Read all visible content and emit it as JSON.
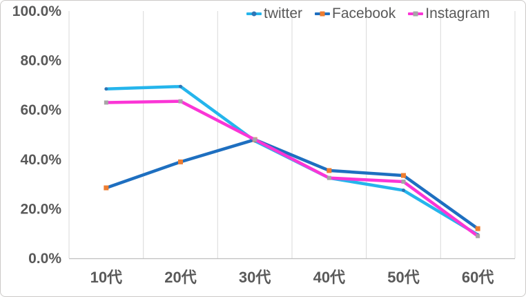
{
  "chart_data": {
    "type": "line",
    "title": "",
    "categories": [
      "10代",
      "20代",
      "30代",
      "40代",
      "50代",
      "60代"
    ],
    "series": [
      {
        "name": "twitter",
        "color": "#25B5EC",
        "marker": {
          "shape": "circle",
          "color": "#2E75B6",
          "size": 5
        },
        "values": [
          68.5,
          69.5,
          47.5,
          32.5,
          27.5,
          9.5
        ]
      },
      {
        "name": "Facebook",
        "color": "#1E6FC0",
        "marker": {
          "shape": "square",
          "color": "#ED7D31",
          "size": 7
        },
        "values": [
          28.5,
          39.0,
          48.0,
          35.5,
          33.5,
          12.0
        ]
      },
      {
        "name": "Instagram",
        "color": "#FB35D6",
        "marker": {
          "shape": "square",
          "color": "#A6A6A6",
          "size": 6
        },
        "values": [
          63.0,
          63.5,
          48.0,
          32.5,
          31.0,
          9.0
        ]
      }
    ],
    "y_ticks": [
      {
        "value": 0,
        "label": "0.0%"
      },
      {
        "value": 20,
        "label": "20.0%"
      },
      {
        "value": 40,
        "label": "40.0%"
      },
      {
        "value": 60,
        "label": "60.0%"
      },
      {
        "value": 80,
        "label": "80.0%"
      },
      {
        "value": 100,
        "label": "100.0%"
      }
    ],
    "ylim": [
      0,
      100
    ],
    "grid": "vertical",
    "legend_position": "top-right",
    "colors": {
      "gridline": "#D9D9D9",
      "axis_line": "#BFBFBF",
      "tick_label": "#595959",
      "background": "#FFFFFF"
    }
  }
}
